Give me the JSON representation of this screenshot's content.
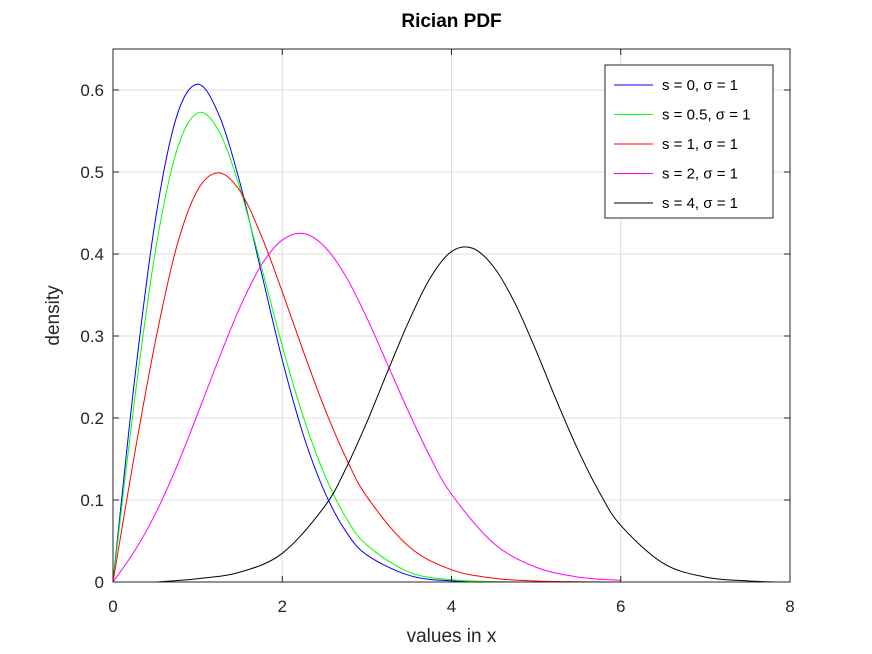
{
  "chart_data": {
    "type": "line",
    "title": "Rician PDF",
    "xlabel": "values in x",
    "ylabel": "density",
    "xlim": [
      0,
      8
    ],
    "ylim": [
      0,
      0.65
    ],
    "xticks": [
      0,
      2,
      4,
      6,
      8
    ],
    "yticks": [
      0,
      0.1,
      0.2,
      0.3,
      0.4,
      0.5,
      0.6
    ],
    "grid": true,
    "legend_position": "top-right",
    "series": [
      {
        "name": "s = 0, σ = 1",
        "color": "#0000ff",
        "s": 0,
        "sigma": 1,
        "x": [
          0,
          0.25,
          0.5,
          0.75,
          1,
          1.25,
          1.5,
          1.75,
          2,
          2.25,
          2.5,
          2.75,
          3,
          3.5,
          4,
          4.5,
          5
        ],
        "y": [
          0,
          0.242,
          0.441,
          0.567,
          0.607,
          0.57,
          0.487,
          0.379,
          0.271,
          0.179,
          0.11,
          0.062,
          0.033,
          0.008,
          0.0013,
          0.0002,
          0
        ]
      },
      {
        "name": "s = 0.5, σ = 1",
        "color": "#00ff00",
        "s": 0.5,
        "sigma": 1,
        "x": [
          0,
          0.25,
          0.5,
          0.75,
          1,
          1.25,
          1.5,
          1.75,
          2,
          2.25,
          2.5,
          2.75,
          3,
          3.5,
          4,
          4.5,
          5
        ],
        "y": [
          0,
          0.218,
          0.403,
          0.525,
          0.572,
          0.55,
          0.48,
          0.386,
          0.288,
          0.201,
          0.131,
          0.079,
          0.045,
          0.012,
          0.0027,
          0.0005,
          0
        ]
      },
      {
        "name": "s = 1, σ = 1",
        "color": "#ff0000",
        "s": 1,
        "sigma": 1,
        "x": [
          0,
          0.25,
          0.5,
          0.75,
          1,
          1.25,
          1.5,
          1.75,
          2,
          2.25,
          2.5,
          2.75,
          3,
          3.5,
          4,
          4.5,
          5,
          5.5,
          6
        ],
        "y": [
          0,
          0.153,
          0.293,
          0.408,
          0.478,
          0.499,
          0.477,
          0.423,
          0.354,
          0.281,
          0.212,
          0.152,
          0.104,
          0.043,
          0.015,
          0.0046,
          0.0012,
          0.0003,
          0
        ]
      },
      {
        "name": "s = 2, σ = 1",
        "color": "#ff00ff",
        "s": 2,
        "sigma": 1,
        "x": [
          0,
          0.25,
          0.5,
          0.75,
          1,
          1.25,
          1.5,
          1.75,
          2,
          2.25,
          2.5,
          2.75,
          3,
          3.25,
          3.5,
          3.75,
          4,
          4.5,
          5,
          5.5,
          6
        ],
        "y": [
          0,
          0.037,
          0.083,
          0.14,
          0.205,
          0.272,
          0.335,
          0.386,
          0.417,
          0.425,
          0.409,
          0.373,
          0.322,
          0.264,
          0.206,
          0.152,
          0.107,
          0.047,
          0.018,
          0.006,
          0.002
        ]
      },
      {
        "name": "s = 4, σ = 1",
        "color": "#000000",
        "s": 4,
        "sigma": 1,
        "x": [
          0.5,
          1,
          1.5,
          2,
          2.5,
          2.75,
          3,
          3.25,
          3.5,
          3.75,
          4,
          4.25,
          4.5,
          4.75,
          5,
          5.25,
          5.5,
          5.75,
          6,
          6.5,
          7,
          7.5,
          7.85
        ],
        "y": [
          0,
          0.004,
          0.012,
          0.035,
          0.092,
          0.138,
          0.195,
          0.258,
          0.319,
          0.371,
          0.403,
          0.407,
          0.384,
          0.34,
          0.282,
          0.219,
          0.16,
          0.109,
          0.069,
          0.023,
          0.006,
          0.0013,
          0
        ]
      }
    ]
  }
}
